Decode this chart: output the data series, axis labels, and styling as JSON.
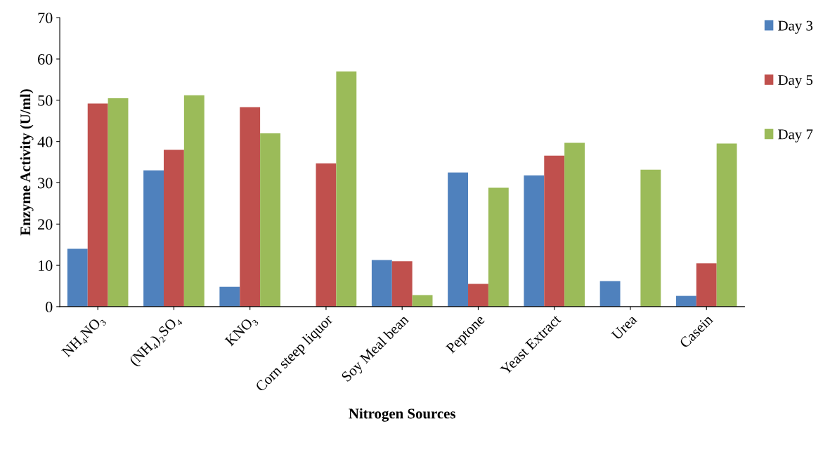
{
  "chart_data": {
    "type": "bar",
    "xlabel": "Nitrogen Sources",
    "ylabel": "Enzyme Activity (U/ml)",
    "categories": [
      "NH₄NO₃",
      "(NH₄)₂SO₄",
      "KNO₃",
      "Corn steep liquor",
      "Soy Meal bean",
      "Peptone",
      "Yeast Extract",
      "Urea",
      "Casein"
    ],
    "series": [
      {
        "name": "Day 3",
        "color": "#4f81bd",
        "values": [
          14,
          33,
          4.8,
          0,
          11.3,
          32.5,
          31.8,
          6.2,
          2.6
        ]
      },
      {
        "name": "Day 5",
        "color": "#c0504d",
        "values": [
          49.2,
          38,
          48.3,
          34.7,
          11,
          5.5,
          36.6,
          0,
          10.5
        ]
      },
      {
        "name": "Day 7",
        "color": "#9bbb59",
        "values": [
          50.5,
          51.2,
          42,
          57,
          2.8,
          28.8,
          39.7,
          33.2,
          39.5
        ]
      }
    ],
    "ylim": [
      0,
      70
    ],
    "yticks": [
      0,
      10,
      20,
      30,
      40,
      50,
      60,
      70
    ],
    "grid": false,
    "legend": "right"
  }
}
